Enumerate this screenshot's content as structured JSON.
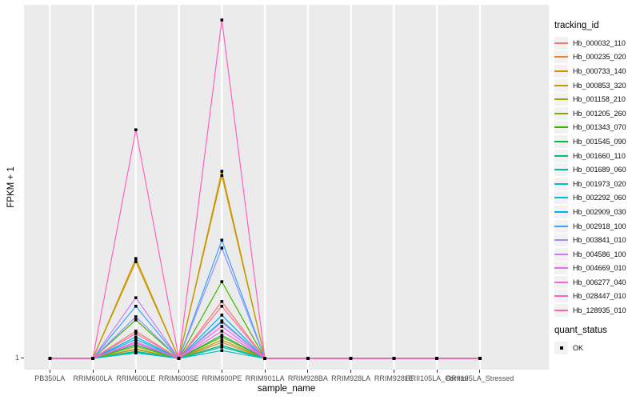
{
  "figure": {
    "y_axis_title": "FPKM + 1",
    "x_axis_title": "sample_name",
    "y_tick_label": "1",
    "panel_bg": "#EBEBEB",
    "grid_color": "#FFFFFF",
    "tick_color": "#333333",
    "tick_label_color": "#4D4D4D"
  },
  "legend": {
    "tracking_title": "tracking_id",
    "quant_title": "quant_status",
    "quant_items": [
      {
        "label": "OK",
        "marker": "black-square"
      }
    ],
    "key_fill": "#F2F2F2"
  },
  "chart_data": {
    "type": "line",
    "title": "",
    "xlabel": "sample_name",
    "ylabel": "FPKM + 1",
    "y_tick_labels": [
      "1"
    ],
    "grid": "vertical-major-only",
    "legend_position": "right",
    "marker": {
      "shape": "square",
      "color": "#000000",
      "meaning": "quant_status OK"
    },
    "categories": [
      "PB350LA",
      "RRIM600LA",
      "RRIM600LE",
      "RRIM600SE",
      "RRIM600PE",
      "RRIM901LA",
      "RRIM928BA",
      "RRIM928LA",
      "RRIM928LE",
      "RRII105LA_Control",
      "RRII105LA_Stressed"
    ],
    "value_scale": "relative height above y=1 baseline, 1.0 = panel top",
    "series": [
      {
        "name": "Hb_000032_110",
        "color": "#F8766D",
        "values": [
          0,
          0,
          0.08,
          0,
          0.167,
          0,
          0,
          0,
          0,
          0,
          0
        ]
      },
      {
        "name": "Hb_000235_020",
        "color": "#EA8331",
        "values": [
          0,
          0,
          0.026,
          0,
          0.047,
          0,
          0,
          0,
          0,
          0,
          0
        ]
      },
      {
        "name": "Hb_000733_140",
        "color": "#D89000",
        "values": [
          0,
          0,
          0.284,
          0,
          0.537,
          0,
          0,
          0,
          0,
          0,
          0
        ]
      },
      {
        "name": "Hb_000853_320",
        "color": "#C09B00",
        "values": [
          0,
          0,
          0.293,
          0,
          0.549,
          0,
          0,
          0,
          0,
          0,
          0
        ]
      },
      {
        "name": "Hb_001158_210",
        "color": "#A3A500",
        "values": [
          0,
          0,
          0.028,
          0,
          0.054,
          0,
          0,
          0,
          0,
          0,
          0
        ]
      },
      {
        "name": "Hb_001205_260",
        "color": "#7CAE00",
        "values": [
          0,
          0,
          0.035,
          0,
          0.063,
          0,
          0,
          0,
          0,
          0,
          0
        ]
      },
      {
        "name": "Hb_001343_070",
        "color": "#39B600",
        "values": [
          0,
          0,
          0.113,
          0,
          0.225,
          0,
          0,
          0,
          0,
          0,
          0
        ]
      },
      {
        "name": "Hb_001545_090",
        "color": "#00BB4E",
        "values": [
          0,
          0,
          0.04,
          0,
          0.068,
          0,
          0,
          0,
          0,
          0,
          0
        ]
      },
      {
        "name": "Hb_001660_110",
        "color": "#00BF7D",
        "values": [
          0,
          0,
          0.021,
          0,
          0.038,
          0,
          0,
          0,
          0,
          0,
          0
        ]
      },
      {
        "name": "Hb_001689_060",
        "color": "#00C1A3",
        "values": [
          0,
          0,
          0.019,
          0,
          0.033,
          0,
          0,
          0,
          0,
          0,
          0
        ]
      },
      {
        "name": "Hb_001973_020",
        "color": "#00BFC4",
        "values": [
          0,
          0,
          0.016,
          0,
          0.023,
          0,
          0,
          0,
          0,
          0,
          0
        ]
      },
      {
        "name": "Hb_002292_060",
        "color": "#00BAE0",
        "values": [
          0,
          0,
          0.063,
          0,
          0.11,
          0,
          0,
          0,
          0,
          0,
          0
        ]
      },
      {
        "name": "Hb_002909_030",
        "color": "#00B0F6",
        "values": [
          0,
          0,
          0.056,
          0,
          0.127,
          0,
          0,
          0,
          0,
          0,
          0
        ]
      },
      {
        "name": "Hb_002918_100",
        "color": "#35A2FF",
        "values": [
          0,
          0,
          0.153,
          0,
          0.347,
          0,
          0,
          0,
          0,
          0,
          0
        ]
      },
      {
        "name": "Hb_003841_010",
        "color": "#9590FF",
        "values": [
          0,
          0,
          0.122,
          0,
          0.324,
          0,
          0,
          0,
          0,
          0,
          0
        ]
      },
      {
        "name": "Hb_004586_100",
        "color": "#C77CFF",
        "values": [
          0,
          0,
          0.178,
          0,
          0.106,
          0,
          0,
          0,
          0,
          0,
          0
        ]
      },
      {
        "name": "Hb_004669_010",
        "color": "#E76BF3",
        "values": [
          0,
          0,
          0.049,
          0,
          0.094,
          0,
          0,
          0,
          0,
          0,
          0
        ]
      },
      {
        "name": "Hb_006277_040",
        "color": "#FA62DB",
        "values": [
          0,
          0,
          0.045,
          0,
          0.08,
          0,
          0,
          0,
          0,
          0,
          0
        ]
      },
      {
        "name": "Hb_028447_010",
        "color": "#FF62BC",
        "values": [
          0,
          0,
          0.671,
          0,
          0.993,
          0,
          0,
          0,
          0,
          0,
          0
        ]
      },
      {
        "name": "Hb_128935_010",
        "color": "#FF6A98",
        "values": [
          0,
          0,
          0.073,
          0,
          0.153,
          0,
          0,
          0,
          0,
          0,
          0
        ]
      }
    ]
  }
}
